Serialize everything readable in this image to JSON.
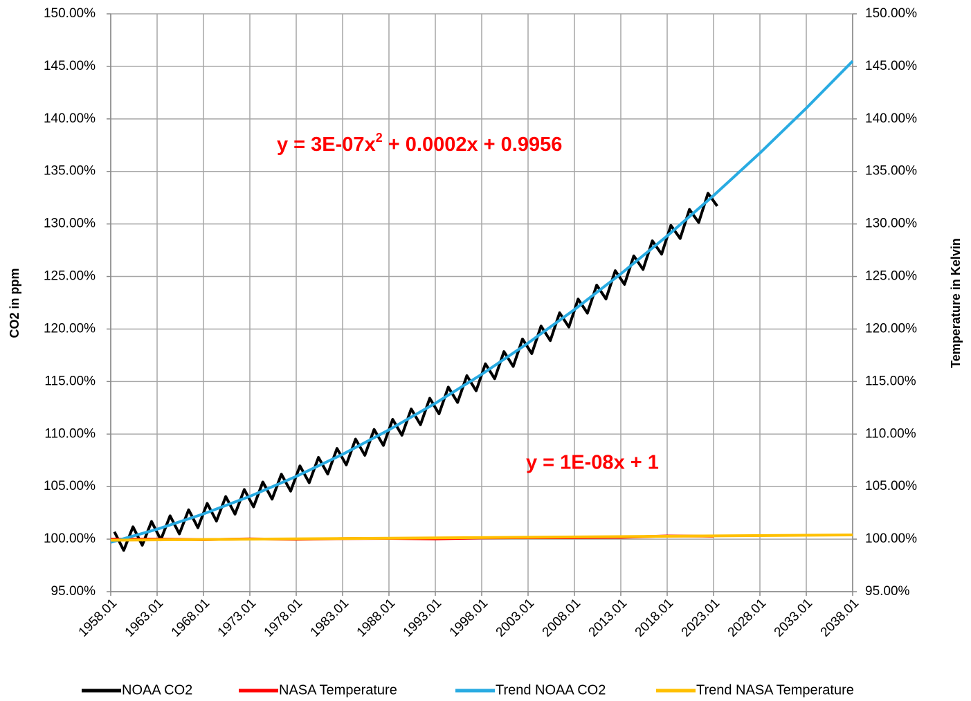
{
  "chart_data": {
    "type": "line",
    "y_label": "CO2 in ppm",
    "y2_label": "Temperature in Kelvin",
    "annotations": [
      {
        "text": "y = 3E-07x",
        "superscript": "2",
        "text_after": " + 0.0002x + 0.9956",
        "color": "#ff0000"
      },
      {
        "text": "y = 1E-08x + 1",
        "color": "#ff0000"
      }
    ],
    "xlim": [
      1958.01,
      2038.01
    ],
    "xticks": [
      1958.01,
      1963.01,
      1968.01,
      1973.01,
      1978.01,
      1983.01,
      1988.01,
      1993.01,
      1998.01,
      2003.01,
      2008.01,
      2013.01,
      2018.01,
      2023.01,
      2028.01,
      2033.01,
      2038.01
    ],
    "ylim": [
      95,
      150
    ],
    "yticks": [
      {
        "value": 95,
        "label": "95.00%"
      },
      {
        "value": 100,
        "label": "100.00%"
      },
      {
        "value": 105,
        "label": "105.00%"
      },
      {
        "value": 110,
        "label": "110.00%"
      },
      {
        "value": 115,
        "label": "115.00%"
      },
      {
        "value": 120,
        "label": "120.00%"
      },
      {
        "value": 125,
        "label": "125.00%"
      },
      {
        "value": 130,
        "label": "130.00%"
      },
      {
        "value": 135,
        "label": "135.00%"
      },
      {
        "value": 140,
        "label": "140.00%"
      },
      {
        "value": 145,
        "label": "145.00%"
      },
      {
        "value": 150,
        "label": "150.00%"
      }
    ],
    "y2lim": [
      95,
      150
    ],
    "y2ticks": [
      {
        "value": 95,
        "label": "95.00%"
      },
      {
        "value": 100,
        "label": "100.00%"
      },
      {
        "value": 105,
        "label": "105.00%"
      },
      {
        "value": 110,
        "label": "110.00%"
      },
      {
        "value": 115,
        "label": "115.00%"
      },
      {
        "value": 120,
        "label": "120.00%"
      },
      {
        "value": 125,
        "label": "125.00%"
      },
      {
        "value": 130,
        "label": "130.00%"
      },
      {
        "value": 135,
        "label": "135.00%"
      },
      {
        "value": 140,
        "label": "140.00%"
      },
      {
        "value": 145,
        "label": "145.00%"
      },
      {
        "value": 150,
        "label": "150.00%"
      }
    ],
    "grid": true,
    "legend": "bottom",
    "series": [
      {
        "name": "NOAA CO2",
        "color": "#000000",
        "x": [
          1958.41,
          1959.41,
          1960.41,
          1961.41,
          1962.41,
          1963.41,
          1964.41,
          1965.41,
          1966.41,
          1967.41,
          1968.41,
          1969.41,
          1970.41,
          1971.41,
          1972.41,
          1973.41,
          1974.41,
          1975.41,
          1976.41,
          1977.41,
          1978.41,
          1979.41,
          1980.41,
          1981.41,
          1982.41,
          1983.41,
          1984.41,
          1985.41,
          1986.41,
          1987.41,
          1988.41,
          1989.41,
          1990.41,
          1991.41,
          1992.41,
          1993.41,
          1994.41,
          1995.41,
          1996.41,
          1997.41,
          1998.41,
          1999.41,
          2000.41,
          2001.41,
          2002.41,
          2003.41,
          2004.41,
          2005.41,
          2006.41,
          2007.41,
          2008.41,
          2009.41,
          2010.41,
          2011.41,
          2012.41,
          2013.41,
          2014.41,
          2015.41,
          2016.41,
          2017.41,
          2018.41,
          2019.41,
          2020.41,
          2021.41,
          2022.41,
          2023.41
        ],
        "values": [
          100.7,
          98.93,
          101.17,
          99.42,
          101.68,
          99.94,
          102.22,
          100.5,
          102.79,
          101.09,
          103.4,
          101.72,
          104.05,
          102.38,
          104.72,
          103.07,
          105.44,
          103.81,
          106.18,
          104.57,
          106.97,
          105.37,
          107.78,
          106.2,
          108.63,
          107.07,
          109.52,
          107.98,
          110.44,
          108.92,
          111.4,
          109.89,
          112.39,
          110.89,
          113.41,
          111.93,
          114.47,
          113.01,
          115.56,
          114.12,
          116.69,
          115.27,
          117.85,
          116.44,
          119.05,
          117.66,
          120.28,
          118.9,
          121.54,
          120.19,
          122.85,
          121.51,
          124.18,
          122.86,
          125.55,
          124.25,
          126.96,
          125.67,
          128.39,
          127.13,
          129.86,
          128.62,
          131.38,
          130.14,
          132.92,
          131.7
        ]
      },
      {
        "name": "NASA Temperature",
        "color": "#ff0000",
        "x": [
          1958.01,
          1963.01,
          1968.01,
          1973.01,
          1978.01,
          1983.01,
          1988.01,
          1993.01,
          1998.01,
          2003.01,
          2008.01,
          2013.01,
          2018.01,
          2023.01
        ],
        "values": [
          100.0,
          100.0,
          99.95,
          100.02,
          99.98,
          100.05,
          100.07,
          100.02,
          100.12,
          100.15,
          100.15,
          100.17,
          100.3,
          100.28
        ]
      },
      {
        "name": "Trend NOAA CO2",
        "color": "#29abe2",
        "x": [
          1958.01,
          1963.01,
          1968.01,
          1973.01,
          1978.01,
          1983.01,
          1988.01,
          1993.01,
          1998.01,
          2003.01,
          2008.01,
          2013.01,
          2018.01,
          2023.01,
          2028.01,
          2033.01,
          2038.01
        ],
        "values": [
          99.7,
          100.94,
          102.4,
          104.07,
          105.97,
          108.07,
          110.4,
          112.93,
          115.69,
          118.66,
          121.85,
          125.25,
          128.86,
          132.7,
          136.75,
          141.02,
          145.5
        ]
      },
      {
        "name": "Trend NASA Temperature",
        "color": "#ffc000",
        "x": [
          1958.01,
          2038.01
        ],
        "values": [
          99.9,
          100.4
        ]
      }
    ]
  }
}
